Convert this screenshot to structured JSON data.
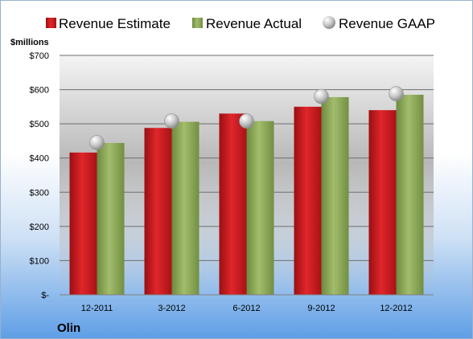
{
  "company": "Olin",
  "chart_data": {
    "type": "bar",
    "ylabel": "$millions",
    "categories": [
      "12-2011",
      "3-2012",
      "6-2012",
      "9-2012",
      "12-2012"
    ],
    "y_tick_labels": [
      "$-",
      "$100",
      "$200",
      "$300",
      "$400",
      "$500",
      "$600",
      "$700"
    ],
    "ylim": [
      0,
      700
    ],
    "grid": true,
    "legend_position": "top",
    "series": [
      {
        "name": "Revenue Estimate",
        "kind": "bar",
        "color": "#c8161c",
        "values": [
          416,
          488,
          530,
          550,
          540
        ]
      },
      {
        "name": "Revenue Actual",
        "kind": "bar",
        "color": "#8aa656",
        "values": [
          444,
          506,
          508,
          578,
          585
        ]
      },
      {
        "name": "Revenue GAAP",
        "kind": "marker",
        "color": "#c0c0c0",
        "values": [
          445,
          508,
          508,
          580,
          588
        ]
      }
    ]
  }
}
